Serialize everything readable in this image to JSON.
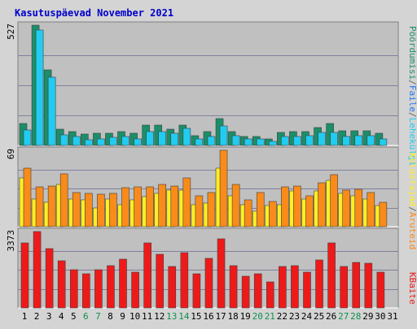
{
  "chart_data": [
    {
      "type": "bar",
      "title": "Kasutuspäevad November 2021",
      "ylabel": "527",
      "legend": [
        "Külastajad",
        "/",
        "Pöördumisi"
      ],
      "categories": [
        "1",
        "2",
        "3",
        "4",
        "5",
        "6",
        "7",
        "8",
        "9",
        "10",
        "11",
        "12",
        "13",
        "14",
        "15",
        "16",
        "17",
        "18",
        "19",
        "20",
        "21",
        "22",
        "23",
        "24",
        "25",
        "26",
        "27",
        "28",
        "29",
        "30",
        "31"
      ],
      "series": [
        {
          "name": "Pöördumisi",
          "color": "#1a8f6a",
          "values": [
            95,
            527,
            330,
            72,
            60,
            50,
            52,
            52,
            60,
            52,
            88,
            88,
            72,
            88,
            42,
            60,
            116,
            60,
            40,
            40,
            30,
            58,
            60,
            60,
            80,
            95,
            65,
            65,
            65,
            52,
            0
          ]
        },
        {
          "name": "Failid",
          "color": "#22ccf0",
          "values": [
            68,
            505,
            300,
            48,
            38,
            26,
            30,
            34,
            40,
            30,
            60,
            62,
            52,
            75,
            28,
            40,
            85,
            42,
            30,
            30,
            18,
            38,
            40,
            42,
            58,
            58,
            40,
            42,
            42,
            30,
            0
          ]
        }
      ],
      "ylim": [
        0,
        527
      ]
    },
    {
      "type": "bar",
      "ylabel": "69",
      "legend": [
        "Aruteid",
        "/",
        "Külastajad"
      ],
      "categories": [
        "1",
        "2",
        "3",
        "4",
        "5",
        "6",
        "7",
        "8",
        "9",
        "10",
        "11",
        "12",
        "13",
        "14",
        "15",
        "16",
        "17",
        "18",
        "19",
        "20",
        "21",
        "22",
        "23",
        "24",
        "25",
        "26",
        "27",
        "28",
        "29",
        "30",
        "31"
      ],
      "series": [
        {
          "name": "Külastajad",
          "color": "#ffee22",
          "values": [
            44,
            25,
            22,
            38,
            25,
            24,
            17,
            25,
            20,
            24,
            27,
            30,
            33,
            33,
            20,
            21,
            53,
            28,
            20,
            14,
            19,
            20,
            32,
            25,
            32,
            42,
            30,
            28,
            25,
            19,
            0
          ]
        },
        {
          "name": "Aruteid",
          "color": "#f98b1a",
          "values": [
            53,
            36,
            37,
            48,
            31,
            30,
            29,
            30,
            35,
            36,
            36,
            38,
            37,
            44,
            28,
            31,
            69,
            38,
            24,
            31,
            23,
            36,
            37,
            28,
            40,
            47,
            33,
            34,
            31,
            22,
            0
          ]
        }
      ],
      "ylim": [
        0,
        69
      ]
    },
    {
      "type": "bar",
      "ylabel": "3373",
      "legend": [
        "KBaite"
      ],
      "categories": [
        "1",
        "2",
        "3",
        "4",
        "5",
        "6",
        "7",
        "8",
        "9",
        "10",
        "11",
        "12",
        "13",
        "14",
        "15",
        "16",
        "17",
        "18",
        "19",
        "20",
        "21",
        "22",
        "23",
        "24",
        "25",
        "26",
        "27",
        "28",
        "29",
        "30",
        "31"
      ],
      "series": [
        {
          "name": "KBaite",
          "color": "#ee1a1a",
          "values": [
            2860,
            3373,
            2610,
            2080,
            1700,
            1500,
            1700,
            1860,
            2170,
            1590,
            2860,
            2360,
            1840,
            2440,
            1510,
            2190,
            3050,
            1860,
            1400,
            1510,
            1160,
            1840,
            1860,
            1590,
            2130,
            2860,
            1840,
            2020,
            1970,
            1590,
            0
          ]
        }
      ],
      "ylim": [
        0,
        3373
      ]
    }
  ],
  "weekend_days": [
    "6",
    "7",
    "13",
    "14",
    "20",
    "21",
    "27",
    "28"
  ],
  "colors": {
    "background": "#d4d4d4",
    "plot_bg": "#c0c0c0",
    "grid": "#8080a0",
    "title": "#0000cc",
    "weekday_label": "#000000",
    "weekend_label": "#0f8f4f",
    "slash": "#666666"
  }
}
